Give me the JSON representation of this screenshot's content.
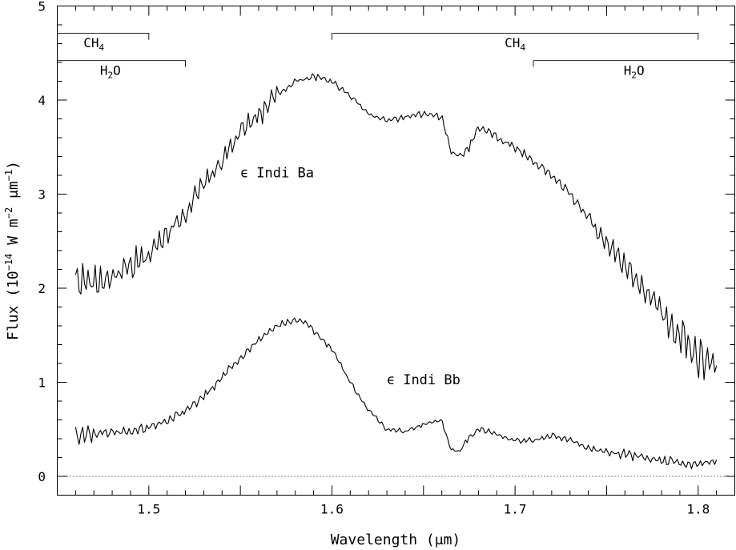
{
  "chart_data": {
    "type": "line",
    "xlabel": "Wavelength (μm)",
    "ylabel_parts": {
      "prefix": "Flux (10",
      "exp1": "−14",
      "mid": " W m",
      "exp2": "−2",
      "mid2": " μm",
      "exp3": "−1",
      "suffix": ")"
    },
    "xlim": [
      1.45,
      1.82
    ],
    "ylim": [
      -0.2,
      5.0
    ],
    "xticks": [
      1.5,
      1.6,
      1.7,
      1.8
    ],
    "xtick_labels": [
      "1.5",
      "1.6",
      "1.7",
      "1.8"
    ],
    "yticks": [
      0,
      1,
      2,
      3,
      4,
      5
    ],
    "ytick_labels": [
      "0",
      "1",
      "2",
      "3",
      "4",
      "5"
    ],
    "zero_reference_line": true,
    "annotations": [
      {
        "label_main": "CH",
        "label_sub": "4",
        "x_start": 1.45,
        "x_end": 1.5,
        "y": 4.71,
        "label_x": 1.47,
        "label_y": 4.56
      },
      {
        "label_main": "H",
        "label_sub": "2",
        "label_tail": "O",
        "x_start": 1.45,
        "x_end": 1.52,
        "y": 4.42,
        "label_x": 1.479,
        "label_y": 4.27
      },
      {
        "label_main": "CH",
        "label_sub": "4",
        "x_start": 1.6,
        "x_end": 1.8,
        "y": 4.71,
        "label_x": 1.7,
        "label_y": 4.56
      },
      {
        "label_main": "H",
        "label_sub": "2",
        "label_tail": "O",
        "x_start": 1.71,
        "x_end": 1.82,
        "y": 4.42,
        "label_x": 1.765,
        "label_y": 4.27
      }
    ],
    "series": [
      {
        "name": "ϵ Indi Ba",
        "label_x": 1.57,
        "label_y": 3.18,
        "anchors": [
          [
            1.46,
            2.1
          ],
          [
            1.47,
            2.05
          ],
          [
            1.48,
            2.12
          ],
          [
            1.49,
            2.2
          ],
          [
            1.5,
            2.35
          ],
          [
            1.51,
            2.6
          ],
          [
            1.52,
            2.8
          ],
          [
            1.53,
            3.1
          ],
          [
            1.54,
            3.35
          ],
          [
            1.55,
            3.65
          ],
          [
            1.56,
            3.85
          ],
          [
            1.57,
            4.05
          ],
          [
            1.58,
            4.2
          ],
          [
            1.59,
            4.25
          ],
          [
            1.6,
            4.2
          ],
          [
            1.61,
            4.05
          ],
          [
            1.62,
            3.85
          ],
          [
            1.63,
            3.78
          ],
          [
            1.64,
            3.82
          ],
          [
            1.65,
            3.85
          ],
          [
            1.66,
            3.82
          ],
          [
            1.665,
            3.45
          ],
          [
            1.67,
            3.4
          ],
          [
            1.675,
            3.5
          ],
          [
            1.68,
            3.72
          ],
          [
            1.685,
            3.68
          ],
          [
            1.69,
            3.6
          ],
          [
            1.7,
            3.5
          ],
          [
            1.71,
            3.35
          ],
          [
            1.72,
            3.2
          ],
          [
            1.73,
            3.0
          ],
          [
            1.74,
            2.75
          ],
          [
            1.75,
            2.5
          ],
          [
            1.76,
            2.25
          ],
          [
            1.77,
            2.0
          ],
          [
            1.78,
            1.75
          ],
          [
            1.79,
            1.5
          ],
          [
            1.8,
            1.25
          ],
          [
            1.81,
            1.2
          ]
        ],
        "noise": [
          [
            1.46,
            1.5,
            0.2
          ],
          [
            1.5,
            1.57,
            0.14
          ],
          [
            1.57,
            1.62,
            0.04
          ],
          [
            1.62,
            1.67,
            0.04
          ],
          [
            1.67,
            1.74,
            0.06
          ],
          [
            1.74,
            1.78,
            0.14
          ],
          [
            1.78,
            1.81,
            0.25
          ]
        ]
      },
      {
        "name": "ϵ Indi Bb",
        "label_x": 1.65,
        "label_y": 0.98,
        "anchors": [
          [
            1.46,
            0.45
          ],
          [
            1.47,
            0.45
          ],
          [
            1.48,
            0.47
          ],
          [
            1.49,
            0.48
          ],
          [
            1.5,
            0.52
          ],
          [
            1.51,
            0.6
          ],
          [
            1.52,
            0.7
          ],
          [
            1.53,
            0.85
          ],
          [
            1.54,
            1.05
          ],
          [
            1.55,
            1.25
          ],
          [
            1.56,
            1.45
          ],
          [
            1.57,
            1.6
          ],
          [
            1.58,
            1.67
          ],
          [
            1.585,
            1.65
          ],
          [
            1.59,
            1.55
          ],
          [
            1.6,
            1.35
          ],
          [
            1.61,
            1.0
          ],
          [
            1.62,
            0.7
          ],
          [
            1.63,
            0.5
          ],
          [
            1.64,
            0.48
          ],
          [
            1.65,
            0.55
          ],
          [
            1.66,
            0.6
          ],
          [
            1.665,
            0.28
          ],
          [
            1.67,
            0.27
          ],
          [
            1.675,
            0.42
          ],
          [
            1.68,
            0.5
          ],
          [
            1.69,
            0.45
          ],
          [
            1.7,
            0.38
          ],
          [
            1.71,
            0.38
          ],
          [
            1.72,
            0.44
          ],
          [
            1.73,
            0.38
          ],
          [
            1.74,
            0.3
          ],
          [
            1.75,
            0.26
          ],
          [
            1.76,
            0.24
          ],
          [
            1.77,
            0.2
          ],
          [
            1.78,
            0.17
          ],
          [
            1.79,
            0.14
          ],
          [
            1.8,
            0.12
          ],
          [
            1.81,
            0.18
          ]
        ],
        "noise": [
          [
            1.46,
            1.47,
            0.12
          ],
          [
            1.47,
            1.55,
            0.06
          ],
          [
            1.55,
            1.6,
            0.04
          ],
          [
            1.6,
            1.67,
            0.03
          ],
          [
            1.67,
            1.75,
            0.035
          ],
          [
            1.75,
            1.81,
            0.06
          ]
        ]
      }
    ]
  }
}
